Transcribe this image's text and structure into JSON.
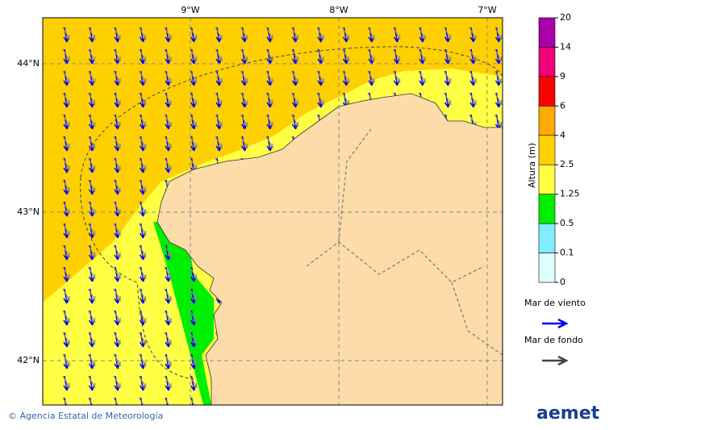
{
  "map": {
    "lon_ticks": [
      {
        "value": -9,
        "label": "9°W"
      },
      {
        "value": -8,
        "label": "8°W"
      },
      {
        "value": -7,
        "label": "7°W"
      }
    ],
    "lat_ticks": [
      {
        "value": 44,
        "label": "44°N"
      },
      {
        "value": 43,
        "label": "43°N"
      },
      {
        "value": 42,
        "label": "42°N"
      }
    ]
  },
  "colorbar": {
    "title": "Altura (m)",
    "levels": [
      0,
      0.1,
      0.5,
      1.25,
      2.5,
      4,
      6,
      9,
      14,
      20
    ],
    "colors": [
      "#e0ffff",
      "#80eeff",
      "#00ee00",
      "#ffff44",
      "#ffd000",
      "#ffaa00",
      "#ff0000",
      "#ee0077",
      "#aa00aa"
    ]
  },
  "legend": [
    {
      "label": "Mar de viento",
      "color": "#0000ee"
    },
    {
      "label": "Mar de fondo",
      "color": "#444444"
    }
  ],
  "footer": {
    "credit": "© Agencia Estatal de Meteorología",
    "logo": "aemet"
  }
}
